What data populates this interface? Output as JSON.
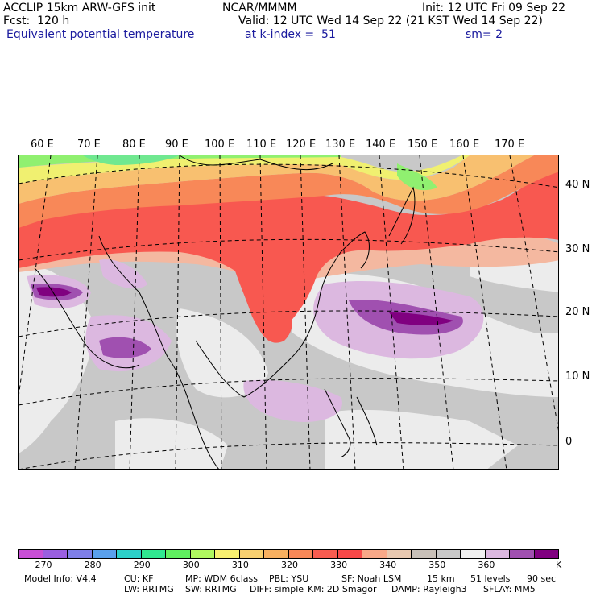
{
  "header": {
    "model": "ACCLIP 15km ARW-GFS init",
    "center": "NCAR/MMMM",
    "init": "Init: 12 UTC Fri 09 Sep 22",
    "fcst": "Fcst:  120 h",
    "valid": "Valid: 12 UTC Wed 14 Sep 22 (21 KST Wed 14 Sep 22)",
    "field": "Equivalent potential temperature",
    "level": "at k-index =  51",
    "smooth": "sm= 2"
  },
  "map": {
    "lon_labels": [
      "60 E",
      "70 E",
      "80 E",
      "90 E",
      "100 E",
      "110 E",
      "120 E",
      "130 E",
      "140 E",
      "150 E",
      "160 E",
      "170 E"
    ],
    "lat_labels": [
      "40 N",
      "30 N",
      "20 N",
      "10 N",
      "0"
    ]
  },
  "colorbar": {
    "colors": [
      "#c94fd6",
      "#9a5fe0",
      "#7f7fe8",
      "#5aa0ec",
      "#2cd0c8",
      "#30e890",
      "#60f060",
      "#b0f860",
      "#f8f070",
      "#f8d070",
      "#f8b060",
      "#f88858",
      "#f85c50",
      "#f84848",
      "#f8a888",
      "#e8c8b0",
      "#c8c0b8",
      "#c8c8c8",
      "#f0f0f0",
      "#dcb8e0",
      "#a050b0",
      "#800080"
    ],
    "labels": [
      "270",
      "280",
      "290",
      "300",
      "310",
      "320",
      "330",
      "340",
      "350",
      "360"
    ],
    "unit": "K"
  },
  "footer": {
    "line1": [
      "Model Info: V4.4",
      "CU: KF",
      "MP: WDM 6class",
      "PBL: YSU",
      "SF: Noah LSM",
      "15 km",
      "51 levels",
      "90 sec"
    ],
    "line2": [
      "LW: RRTMG",
      "SW: RRTMG",
      "DIFF: simple",
      "KM: 2D Smagor",
      "DAMP: Rayleigh3",
      "SFLAY: MM5"
    ]
  }
}
